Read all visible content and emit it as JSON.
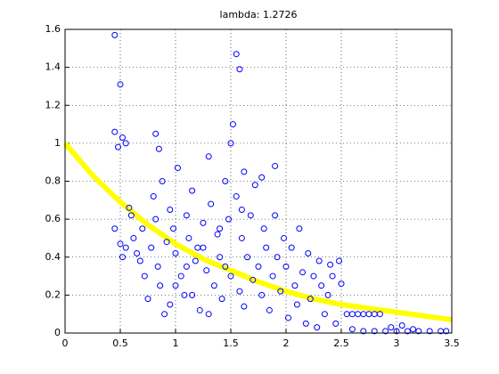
{
  "chart_data": {
    "type": "scatter",
    "title": "lambda: 1.2726",
    "xlim": [
      0,
      3.5
    ],
    "xticks": [
      0,
      0.5,
      1,
      1.5,
      2,
      2.5,
      3,
      3.5
    ],
    "ylim": [
      0,
      1.6
    ],
    "yticks": [
      0,
      0.2,
      0.4,
      0.6,
      0.8,
      1,
      1.2,
      1.4,
      1.6
    ],
    "grid": true,
    "points": {
      "color": "#0000ff",
      "x": [
        0.45,
        0.5,
        0.45,
        0.52,
        0.55,
        0.48,
        0.82,
        0.85,
        1.55,
        1.58,
        1.52,
        1.5,
        1.62,
        1.9,
        1.78,
        0.45,
        0.5,
        0.55,
        0.52,
        0.58,
        0.6,
        0.62,
        0.65,
        0.68,
        0.7,
        0.72,
        0.75,
        0.78,
        0.8,
        0.82,
        0.84,
        0.86,
        0.88,
        0.9,
        0.92,
        0.95,
        0.98,
        1.0,
        1.02,
        1.05,
        1.08,
        1.1,
        1.12,
        1.15,
        1.18,
        1.2,
        1.22,
        1.25,
        1.28,
        1.3,
        1.32,
        1.35,
        1.38,
        1.4,
        1.42,
        1.45,
        1.48,
        1.5,
        1.55,
        1.58,
        1.6,
        1.62,
        1.65,
        1.68,
        1.7,
        1.72,
        1.75,
        1.78,
        1.8,
        1.82,
        1.85,
        1.88,
        1.9,
        1.92,
        1.95,
        1.98,
        2.0,
        2.02,
        2.05,
        2.08,
        2.1,
        2.12,
        2.15,
        2.18,
        2.2,
        2.22,
        2.25,
        2.28,
        2.3,
        2.32,
        2.35,
        2.38,
        2.4,
        2.42,
        2.45,
        2.48,
        2.5,
        1.0,
        1.1,
        1.25,
        1.4,
        1.15,
        0.95,
        1.3,
        1.6,
        1.45,
        2.55,
        2.6,
        2.65,
        2.7,
        2.75,
        2.8,
        2.85,
        2.6,
        2.7,
        2.8,
        2.9,
        3.0,
        3.1,
        3.2,
        3.3,
        3.4,
        3.45,
        2.95,
        3.05,
        3.15
      ],
      "y": [
        1.57,
        1.31,
        1.06,
        1.03,
        1.0,
        0.98,
        1.05,
        0.97,
        1.47,
        1.39,
        1.1,
        1.0,
        0.85,
        0.88,
        0.82,
        0.55,
        0.47,
        0.45,
        0.4,
        0.66,
        0.62,
        0.5,
        0.42,
        0.38,
        0.55,
        0.3,
        0.18,
        0.45,
        0.72,
        0.6,
        0.35,
        0.25,
        0.8,
        0.1,
        0.48,
        0.65,
        0.55,
        0.42,
        0.87,
        0.3,
        0.2,
        0.62,
        0.5,
        0.75,
        0.38,
        0.45,
        0.12,
        0.58,
        0.33,
        0.93,
        0.68,
        0.25,
        0.52,
        0.4,
        0.18,
        0.8,
        0.6,
        0.3,
        0.72,
        0.22,
        0.5,
        0.14,
        0.4,
        0.62,
        0.28,
        0.78,
        0.35,
        0.2,
        0.55,
        0.45,
        0.12,
        0.3,
        0.62,
        0.4,
        0.22,
        0.5,
        0.35,
        0.08,
        0.45,
        0.25,
        0.15,
        0.55,
        0.32,
        0.05,
        0.42,
        0.18,
        0.3,
        0.03,
        0.38,
        0.25,
        0.1,
        0.2,
        0.36,
        0.3,
        0.05,
        0.38,
        0.26,
        0.25,
        0.35,
        0.45,
        0.55,
        0.2,
        0.15,
        0.1,
        0.65,
        0.35,
        0.1,
        0.1,
        0.1,
        0.1,
        0.1,
        0.1,
        0.1,
        0.02,
        0.01,
        0.01,
        0.01,
        0.01,
        0.01,
        0.01,
        0.01,
        0.01,
        0.01,
        0.03,
        0.04,
        0.02
      ]
    },
    "curve": {
      "color": "#ffff00",
      "x": [
        0,
        0.25,
        0.5,
        0.75,
        1,
        1.25,
        1.5,
        1.75,
        2,
        2.25,
        2.5,
        2.75,
        3,
        3.25,
        3.5
      ],
      "y": [
        1,
        0.83,
        0.69,
        0.57,
        0.47,
        0.39,
        0.33,
        0.27,
        0.22,
        0.18,
        0.15,
        0.13,
        0.11,
        0.09,
        0.07
      ]
    }
  }
}
